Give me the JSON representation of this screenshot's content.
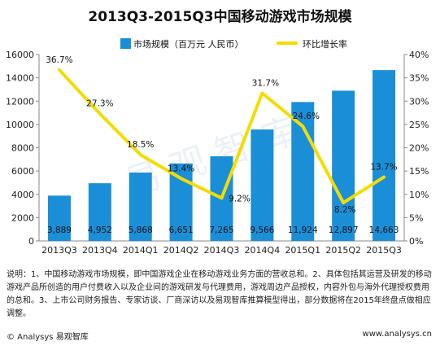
{
  "chart_data": {
    "type": "bar+line",
    "title": "2013Q3-2015Q3中国移动游戏市场规模",
    "categories": [
      "2013Q3",
      "2013Q4",
      "2014Q1",
      "2014Q2",
      "2014Q3",
      "2014Q4",
      "2015Q1",
      "2015Q2",
      "2015Q3"
    ],
    "series": [
      {
        "name": "市场规模（百万元 人民币）",
        "type": "bar",
        "axis": "left",
        "color": "#1a8fd8",
        "values": [
          3889,
          4952,
          5868,
          6651,
          7265,
          9566,
          11924,
          12897,
          14663
        ],
        "labels": [
          "3,889",
          "4,952",
          "5,868",
          "6,651",
          "7,265",
          "9,566",
          "11,924",
          "12,897",
          "14,663"
        ]
      },
      {
        "name": "环比增长率",
        "type": "line",
        "axis": "right",
        "color": "#f5dc00",
        "values": [
          36.7,
          27.3,
          18.5,
          13.4,
          9.2,
          31.7,
          24.6,
          8.2,
          13.7
        ],
        "labels": [
          "36.7%",
          "27.3%",
          "18.5%",
          "13.4%",
          "9.2%",
          "31.7%",
          "24.6%",
          "8.2%",
          "13.7%"
        ]
      }
    ],
    "y_left": {
      "min": 0,
      "max": 16000,
      "ticks": [
        "0",
        "2000",
        "4000",
        "6000",
        "8000",
        "10000",
        "12000",
        "14000",
        "16000"
      ]
    },
    "y_right": {
      "min": 0,
      "max": 40,
      "ticks": [
        "0%",
        "5%",
        "10%",
        "15%",
        "20%",
        "25%",
        "30%",
        "35%",
        "40%"
      ]
    },
    "legend_position": "top-center",
    "grid": false,
    "watermark": "易观智库"
  },
  "note": "说明：1、中国移动游戏市场规模，即中国游戏企业在移动游戏业务方面的营收总和。2、具体包括其运营及研发的移动游戏产品所创造的用户付费收入以及企业间的游戏研发与代理费用，游戏周边产品授权，内容外包与海外代理授权费用的总和。3、上市公司财务报告、专家访谈、厂商深访以及易观智库推算模型得出，部分数据将在2015年终盘点做相应调整。",
  "footer": {
    "source": "© Analysys 易观智库",
    "url": "www.analysys.cn"
  }
}
